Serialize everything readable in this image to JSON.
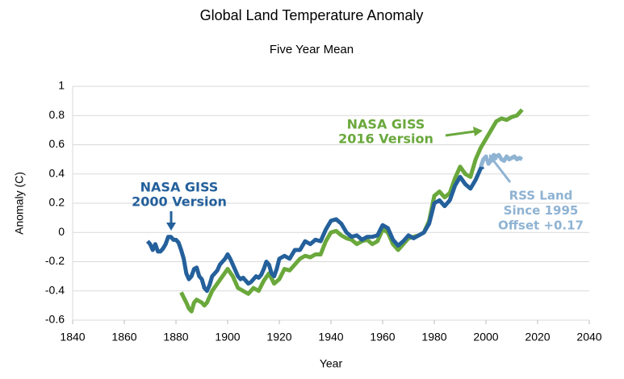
{
  "chart_data": {
    "type": "line",
    "title": "Global Land Temperature Anomaly",
    "subtitle": "Five Year Mean",
    "x_label": "Year",
    "y_label": "Anomaly (C)",
    "xlim": [
      1840,
      2040
    ],
    "xticks": [
      1840,
      1860,
      1880,
      1900,
      1920,
      1940,
      1960,
      1980,
      2000,
      2020,
      2040
    ],
    "ylim": [
      -0.6,
      1
    ],
    "yticks": [
      -0.6,
      -0.4,
      -0.2,
      0,
      0.2,
      0.4,
      0.6,
      0.8,
      1
    ],
    "grid": true,
    "annotations": [
      {
        "lines": [
          "NASA GISS",
          "2000 Version"
        ],
        "color": "#24609b"
      },
      {
        "lines": [
          "NASA GISS",
          "2016 Version"
        ],
        "color": "#6aa83c"
      },
      {
        "lines": [
          "RSS Land",
          "Since 1995",
          "Offset +0.17"
        ],
        "color": "#8fb3d3"
      }
    ],
    "series": [
      {
        "name": "NASA GISS 2016 Version",
        "color": "#6aa83c",
        "x": [
          1882,
          1884,
          1885,
          1886,
          1887,
          1888,
          1890,
          1891,
          1892,
          1894,
          1896,
          1898,
          1900,
          1902,
          1904,
          1906,
          1908,
          1910,
          1912,
          1914,
          1916,
          1918,
          1920,
          1922,
          1924,
          1926,
          1928,
          1930,
          1932,
          1934,
          1936,
          1938,
          1940,
          1942,
          1944,
          1946,
          1948,
          1950,
          1952,
          1954,
          1956,
          1958,
          1960,
          1962,
          1964,
          1966,
          1968,
          1970,
          1972,
          1974,
          1976,
          1978,
          1980,
          1982,
          1984,
          1986,
          1988,
          1990,
          1992,
          1994,
          1996,
          1998,
          2000,
          2002,
          2004,
          2006,
          2008,
          2010,
          2012,
          2014
        ],
        "values": [
          -0.41,
          -0.48,
          -0.52,
          -0.54,
          -0.48,
          -0.46,
          -0.48,
          -0.5,
          -0.48,
          -0.4,
          -0.35,
          -0.3,
          -0.25,
          -0.3,
          -0.38,
          -0.4,
          -0.42,
          -0.38,
          -0.4,
          -0.33,
          -0.28,
          -0.35,
          -0.32,
          -0.25,
          -0.26,
          -0.22,
          -0.18,
          -0.16,
          -0.17,
          -0.15,
          -0.15,
          -0.06,
          0,
          0.01,
          -0.02,
          -0.04,
          -0.05,
          -0.08,
          -0.06,
          -0.05,
          -0.08,
          -0.06,
          0.02,
          0,
          -0.08,
          -0.12,
          -0.08,
          -0.04,
          -0.03,
          -0.02,
          0,
          0.08,
          0.25,
          0.28,
          0.24,
          0.27,
          0.37,
          0.45,
          0.4,
          0.38,
          0.5,
          0.58,
          0.64,
          0.7,
          0.76,
          0.78,
          0.77,
          0.79,
          0.8,
          0.84
        ]
      },
      {
        "name": "NASA GISS 2000 Version",
        "color": "#24609b",
        "x": [
          1869,
          1870,
          1871,
          1872,
          1873,
          1874,
          1875,
          1876,
          1877,
          1878,
          1879,
          1880,
          1881,
          1882,
          1883,
          1884,
          1885,
          1886,
          1887,
          1888,
          1889,
          1890,
          1891,
          1892,
          1893,
          1894,
          1895,
          1896,
          1897,
          1898,
          1899,
          1900,
          1901,
          1902,
          1903,
          1904,
          1905,
          1906,
          1907,
          1908,
          1909,
          1910,
          1911,
          1912,
          1913,
          1914,
          1915,
          1916,
          1917,
          1918,
          1919,
          1920,
          1922,
          1924,
          1926,
          1928,
          1930,
          1932,
          1934,
          1936,
          1938,
          1940,
          1942,
          1944,
          1946,
          1948,
          1950,
          1952,
          1954,
          1956,
          1958,
          1960,
          1962,
          1964,
          1966,
          1968,
          1970,
          1972,
          1974,
          1976,
          1978,
          1980,
          1982,
          1984,
          1986,
          1988,
          1990,
          1992,
          1994,
          1996,
          1998,
          1999
        ],
        "values": [
          -0.06,
          -0.08,
          -0.12,
          -0.08,
          -0.13,
          -0.13,
          -0.11,
          -0.08,
          -0.03,
          -0.03,
          -0.05,
          -0.05,
          -0.07,
          -0.12,
          -0.18,
          -0.28,
          -0.32,
          -0.3,
          -0.25,
          -0.24,
          -0.3,
          -0.32,
          -0.38,
          -0.4,
          -0.36,
          -0.3,
          -0.28,
          -0.26,
          -0.22,
          -0.2,
          -0.18,
          -0.15,
          -0.18,
          -0.22,
          -0.26,
          -0.3,
          -0.32,
          -0.31,
          -0.33,
          -0.35,
          -0.34,
          -0.32,
          -0.3,
          -0.31,
          -0.29,
          -0.25,
          -0.2,
          -0.22,
          -0.28,
          -0.3,
          -0.25,
          -0.18,
          -0.16,
          -0.18,
          -0.12,
          -0.12,
          -0.06,
          -0.08,
          -0.05,
          -0.06,
          0.02,
          0.08,
          0.09,
          0.06,
          0,
          -0.03,
          -0.02,
          -0.05,
          -0.03,
          -0.03,
          -0.02,
          0.05,
          0.03,
          -0.05,
          -0.09,
          -0.06,
          -0.02,
          -0.04,
          -0.02,
          0,
          0.06,
          0.2,
          0.22,
          0.18,
          0.22,
          0.32,
          0.38,
          0.33,
          0.3,
          0.36,
          0.44,
          0.45
        ]
      },
      {
        "name": "RSS Land Since 1995 Offset +0.17",
        "color": "#8fb3d3",
        "x": [
          1998,
          1999,
          2000,
          2001,
          2002,
          2003,
          2004,
          2005,
          2006,
          2007,
          2008,
          2009,
          2010,
          2011,
          2012,
          2013,
          2014
        ],
        "values": [
          0.45,
          0.5,
          0.52,
          0.47,
          0.5,
          0.53,
          0.52,
          0.53,
          0.5,
          0.49,
          0.52,
          0.5,
          0.51,
          0.52,
          0.5,
          0.51,
          0.5
        ]
      }
    ]
  }
}
